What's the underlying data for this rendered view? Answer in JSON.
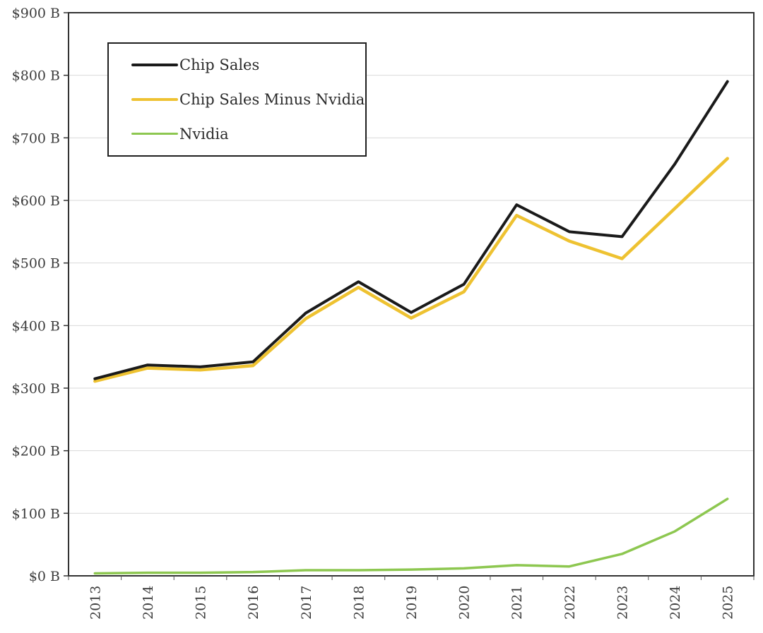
{
  "chart_data": {
    "type": "line",
    "title": "",
    "x": [
      "2013",
      "2014",
      "2015",
      "2016",
      "2017",
      "2018",
      "2019",
      "2020",
      "2021",
      "2022",
      "2023",
      "2024",
      "2025"
    ],
    "series": [
      {
        "name": "Chip Sales",
        "color": "#1a1a1a",
        "stroke_width": 4,
        "values": [
          315,
          337,
          334,
          342,
          420,
          470,
          421,
          466,
          593,
          550,
          542,
          658,
          790
        ]
      },
      {
        "name": "Chip Sales Minus Nvidia",
        "color": "#eec231",
        "stroke_width": 4.5,
        "values": [
          311,
          332,
          329,
          336,
          411,
          461,
          412,
          454,
          576,
          535,
          507,
          587,
          667
        ]
      },
      {
        "name": "Nvidia",
        "color": "#8dc750",
        "stroke_width": 3.5,
        "values": [
          4,
          5,
          5,
          6,
          9,
          9,
          10,
          12,
          17,
          15,
          35,
          71,
          123
        ]
      }
    ],
    "ylim": [
      0,
      900
    ],
    "y_tick_step": 100,
    "y_tick_labels": [
      "$0 B",
      "$100 B",
      "$200 B",
      "$300 B",
      "$400 B",
      "$500 B",
      "$600 B",
      "$700 B",
      "$800 B",
      "$900 B"
    ],
    "grid": "horizontal",
    "legend_position": "top-left",
    "colors": {
      "grid": "#d9d9d9",
      "frame": "#333333",
      "tick": "#555555",
      "label": "#3c3c3c",
      "background": "#ffffff"
    }
  }
}
